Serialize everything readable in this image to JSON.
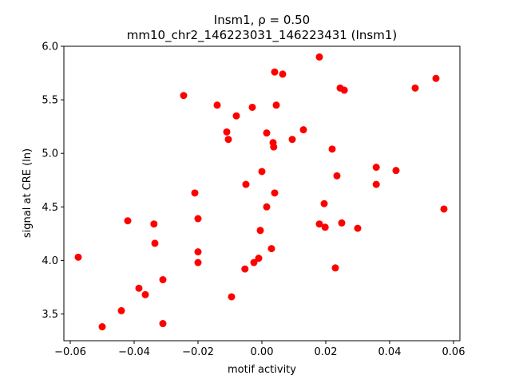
{
  "chart_data": {
    "type": "scatter",
    "title_line1": "Insm1, ρ = 0.50",
    "title_line2": "mm10_chr2_146223031_146223431 (Insm1)",
    "xlabel": "motif activity",
    "ylabel": "signal at CRE (ln)",
    "xlim": [
      -0.062,
      0.062
    ],
    "ylim": [
      3.25,
      6.0
    ],
    "xticks": [
      -0.06,
      -0.04,
      -0.02,
      0.0,
      0.02,
      0.04,
      0.06
    ],
    "xtick_labels": [
      "−0.06",
      "−0.04",
      "−0.02",
      "0.00",
      "0.02",
      "0.04",
      "0.06"
    ],
    "yticks": [
      3.5,
      4.0,
      4.5,
      5.0,
      5.5,
      6.0
    ],
    "ytick_labels": [
      "3.5",
      "4.0",
      "4.5",
      "5.0",
      "5.5",
      "6.0"
    ],
    "marker_color": "#ff0000",
    "grid": false,
    "points": [
      {
        "x": -0.0575,
        "y": 4.03
      },
      {
        "x": -0.05,
        "y": 3.38
      },
      {
        "x": -0.044,
        "y": 3.53
      },
      {
        "x": -0.042,
        "y": 4.37
      },
      {
        "x": -0.0385,
        "y": 3.74
      },
      {
        "x": -0.0365,
        "y": 3.68
      },
      {
        "x": -0.0338,
        "y": 4.34
      },
      {
        "x": -0.0335,
        "y": 4.16
      },
      {
        "x": -0.031,
        "y": 3.82
      },
      {
        "x": -0.031,
        "y": 3.41
      },
      {
        "x": -0.0245,
        "y": 5.54
      },
      {
        "x": -0.021,
        "y": 4.63
      },
      {
        "x": -0.02,
        "y": 4.39
      },
      {
        "x": -0.02,
        "y": 4.08
      },
      {
        "x": -0.02,
        "y": 3.98
      },
      {
        "x": -0.014,
        "y": 5.45
      },
      {
        "x": -0.011,
        "y": 5.2
      },
      {
        "x": -0.0105,
        "y": 5.13
      },
      {
        "x": -0.0095,
        "y": 3.66
      },
      {
        "x": -0.008,
        "y": 5.35
      },
      {
        "x": -0.005,
        "y": 4.71
      },
      {
        "x": -0.0053,
        "y": 3.92
      },
      {
        "x": -0.003,
        "y": 5.43
      },
      {
        "x": -0.0025,
        "y": 3.98
      },
      {
        "x": -0.001,
        "y": 4.02
      },
      {
        "x": -0.0005,
        "y": 4.28
      },
      {
        "x": 0.0,
        "y": 4.83
      },
      {
        "x": 0.0015,
        "y": 5.19
      },
      {
        "x": 0.0015,
        "y": 4.5
      },
      {
        "x": 0.003,
        "y": 4.11
      },
      {
        "x": 0.0035,
        "y": 5.1
      },
      {
        "x": 0.0037,
        "y": 5.06
      },
      {
        "x": 0.004,
        "y": 5.76
      },
      {
        "x": 0.004,
        "y": 4.63
      },
      {
        "x": 0.0045,
        "y": 5.45
      },
      {
        "x": 0.0065,
        "y": 5.74
      },
      {
        "x": 0.0095,
        "y": 5.13
      },
      {
        "x": 0.013,
        "y": 5.22
      },
      {
        "x": 0.018,
        "y": 5.9
      },
      {
        "x": 0.018,
        "y": 4.34
      },
      {
        "x": 0.0195,
        "y": 4.53
      },
      {
        "x": 0.0198,
        "y": 4.31
      },
      {
        "x": 0.022,
        "y": 5.04
      },
      {
        "x": 0.023,
        "y": 3.93
      },
      {
        "x": 0.0235,
        "y": 4.79
      },
      {
        "x": 0.0245,
        "y": 5.61
      },
      {
        "x": 0.025,
        "y": 4.35
      },
      {
        "x": 0.0258,
        "y": 5.59
      },
      {
        "x": 0.03,
        "y": 4.3
      },
      {
        "x": 0.0358,
        "y": 4.87
      },
      {
        "x": 0.0358,
        "y": 4.71
      },
      {
        "x": 0.042,
        "y": 4.84
      },
      {
        "x": 0.048,
        "y": 5.61
      },
      {
        "x": 0.0545,
        "y": 5.7
      },
      {
        "x": 0.057,
        "y": 4.48
      }
    ]
  }
}
